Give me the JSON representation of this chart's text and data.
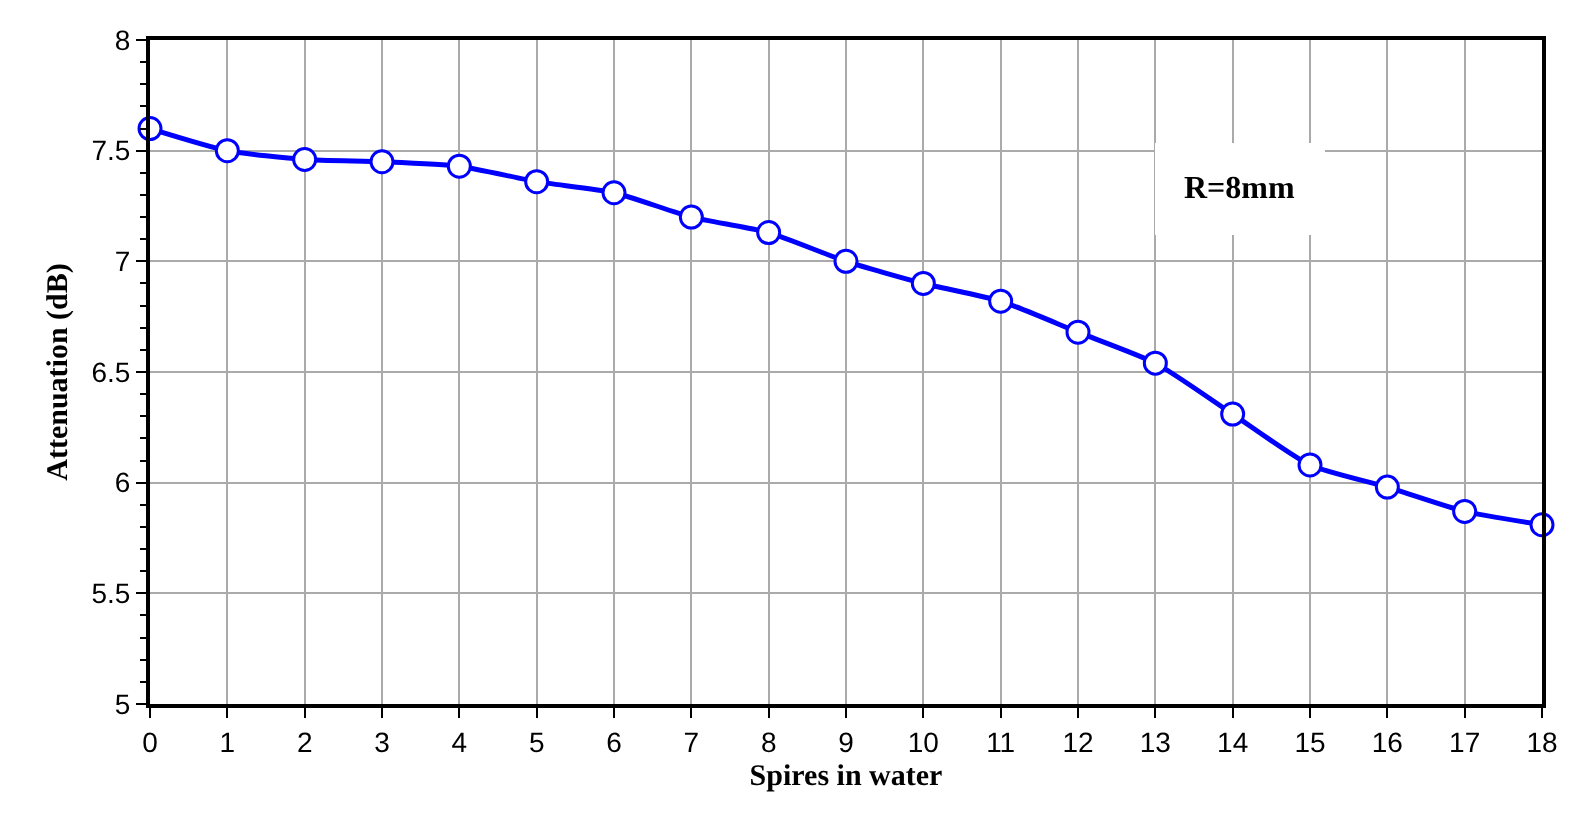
{
  "chart_data": {
    "type": "line",
    "xlabel": "Spires in water",
    "ylabel": "Attenuation (dB)",
    "annotations": [
      "R=8mm"
    ],
    "x": [
      0,
      1,
      2,
      3,
      4,
      5,
      6,
      7,
      8,
      9,
      10,
      11,
      12,
      13,
      14,
      15,
      16,
      17,
      18
    ],
    "series": [
      {
        "color": "#0000ff",
        "values": [
          7.6,
          7.5,
          7.46,
          7.45,
          7.43,
          7.36,
          7.31,
          7.2,
          7.13,
          7.0,
          6.9,
          6.82,
          6.68,
          6.54,
          6.31,
          6.08,
          5.98,
          5.87,
          5.81
        ]
      }
    ],
    "xlim": [
      0,
      18
    ],
    "xticks": [
      0,
      1,
      2,
      3,
      4,
      5,
      6,
      7,
      8,
      9,
      10,
      11,
      12,
      13,
      14,
      15,
      16,
      17,
      18
    ],
    "ylim": [
      5,
      8
    ],
    "yticks": [
      5,
      5.5,
      6,
      6.5,
      7,
      7.5,
      8
    ],
    "grid": true,
    "marker": "circle",
    "line_style": "solid"
  }
}
